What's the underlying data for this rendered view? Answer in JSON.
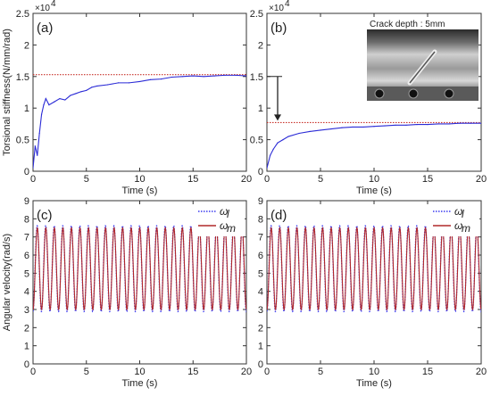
{
  "chart_data": [
    {
      "id": "a",
      "type": "line",
      "panel_label": "(a)",
      "xlabel": "Time (s)",
      "ylabel": "Torsional stiffness(N/mm/rad)",
      "exponent_label": "×10",
      "exponent_power": "4",
      "xlim": [
        0,
        20
      ],
      "ylim": [
        0,
        25000
      ],
      "xticks": [
        "0",
        "5",
        "10",
        "15",
        "20"
      ],
      "yticks": [
        "0",
        "0.5",
        "1",
        "1.5",
        "2",
        "2.5"
      ],
      "reference_y": 15300,
      "series": [
        {
          "color": "#2b2bd6",
          "x": [
            0,
            0.2,
            0.4,
            0.6,
            0.8,
            1.0,
            1.2,
            1.5,
            2,
            2.5,
            3,
            3.5,
            4,
            4.5,
            5,
            5.5,
            6,
            7,
            8,
            9,
            10,
            11,
            12,
            13,
            14,
            15,
            16,
            17,
            18,
            19,
            20
          ],
          "y": [
            500,
            4000,
            2500,
            6000,
            9000,
            10500,
            11500,
            10500,
            11000,
            11500,
            11300,
            12000,
            12300,
            12600,
            12800,
            13300,
            13500,
            13700,
            14000,
            14000,
            14200,
            14500,
            14600,
            14900,
            15000,
            15100,
            15000,
            15100,
            15200,
            15200,
            15100
          ]
        }
      ]
    },
    {
      "id": "b",
      "type": "line",
      "panel_label": "(b)",
      "xlabel": "Time (s)",
      "ylabel": "",
      "exponent_label": "×10",
      "exponent_power": "4",
      "xlim": [
        0,
        20
      ],
      "ylim": [
        0,
        25000
      ],
      "xticks": [
        "0",
        "5",
        "10",
        "15",
        "20"
      ],
      "yticks": [
        "0",
        "0.5",
        "1",
        "1.5",
        "2",
        "2.5"
      ],
      "reference_y": 7700,
      "arrow_from_y": 15000,
      "arrow_to_y": 8000,
      "arrow_x": 1,
      "inset_caption": "Crack depth : 5mm",
      "series": [
        {
          "color": "#2b2bd6",
          "x": [
            0,
            0.3,
            0.6,
            1.0,
            1.5,
            2,
            3,
            4,
            5,
            6,
            7,
            8,
            9,
            10,
            11,
            12,
            13,
            14,
            15,
            16,
            17,
            18,
            19,
            20
          ],
          "y": [
            500,
            2500,
            3500,
            4500,
            5000,
            5500,
            6000,
            6300,
            6500,
            6700,
            6900,
            7000,
            7000,
            7100,
            7200,
            7300,
            7300,
            7400,
            7400,
            7500,
            7500,
            7600,
            7600,
            7600
          ]
        }
      ]
    },
    {
      "id": "c",
      "type": "line",
      "panel_label": "(c)",
      "xlabel": "Time (s)",
      "ylabel": "Angular velocity(rad/s)",
      "xlim": [
        0,
        20
      ],
      "ylim": [
        0,
        9
      ],
      "xticks": [
        "0",
        "5",
        "10",
        "15",
        "20"
      ],
      "yticks": [
        "0",
        "1",
        "2",
        "3",
        "4",
        "5",
        "6",
        "7",
        "8",
        "9"
      ],
      "oscillation": {
        "mean": 5.25,
        "amplitude": 2.25,
        "frequency_hz": 1.25
      },
      "series": [
        {
          "name": "ω",
          "subscript": "l",
          "color": "#3a3af0",
          "style": "dotted"
        },
        {
          "name": "ω",
          "subscript": "m",
          "color": "#b0282a",
          "style": "solid"
        }
      ]
    },
    {
      "id": "d",
      "type": "line",
      "panel_label": "(d)",
      "xlabel": "Time (s)",
      "ylabel": "",
      "xlim": [
        0,
        20
      ],
      "ylim": [
        0,
        9
      ],
      "xticks": [
        "0",
        "5",
        "10",
        "15",
        "20"
      ],
      "yticks": [
        "0",
        "1",
        "2",
        "3",
        "4",
        "5",
        "6",
        "7",
        "8",
        "9"
      ],
      "oscillation": {
        "mean": 5.25,
        "amplitude": 2.25,
        "frequency_hz": 1.25
      },
      "series": [
        {
          "name": "ω",
          "subscript": "l",
          "color": "#3a3af0",
          "style": "dotted"
        },
        {
          "name": "ω",
          "subscript": "m",
          "color": "#b0282a",
          "style": "solid"
        }
      ]
    }
  ]
}
